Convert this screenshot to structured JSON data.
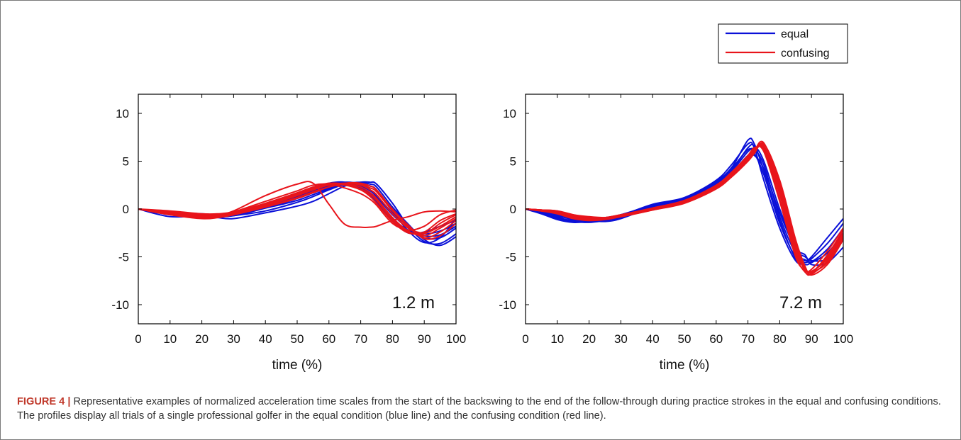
{
  "figure": {
    "caption_label": "FIGURE 4 |",
    "caption_text": " Representative examples of normalized acceleration time scales from the start of the backswing to the end of the follow-through during practice strokes in the equal and confusing conditions. The profiles display all trials of a single professional golfer in the equal condition (blue line) and the confusing condition (red line)."
  },
  "legend": {
    "items": [
      {
        "label": "equal",
        "color": "#0a10d8"
      },
      {
        "label": "confusing",
        "color": "#e8141b"
      }
    ]
  },
  "chart_data": [
    {
      "type": "line",
      "panel_label": "1.2 m",
      "xlabel": "time (%)",
      "ylabel": "",
      "xlim": [
        0,
        100
      ],
      "ylim": [
        -12,
        12
      ],
      "xticks": [
        0,
        10,
        20,
        30,
        40,
        50,
        60,
        70,
        80,
        90,
        100
      ],
      "yticks": [
        10,
        5,
        0,
        -5,
        -10
      ],
      "grid": false,
      "x": [
        0,
        10,
        20,
        25,
        30,
        40,
        50,
        55,
        60,
        65,
        70,
        73,
        75,
        80,
        85,
        90,
        95,
        100
      ],
      "series": [
        {
          "group": "equal",
          "color": "#0a10d8",
          "values": [
            0,
            -0.3,
            -0.5,
            -0.6,
            -0.5,
            0.3,
            1.4,
            1.9,
            2.4,
            2.6,
            2.3,
            1.6,
            0.9,
            -1.0,
            -2.2,
            -2.6,
            -2.3,
            -1.5
          ]
        },
        {
          "group": "equal",
          "color": "#0a10d8",
          "values": [
            0,
            -0.6,
            -0.9,
            -0.8,
            -0.7,
            0.1,
            1.1,
            1.7,
            2.2,
            2.5,
            2.4,
            1.9,
            1.3,
            -0.6,
            -2.0,
            -2.8,
            -2.7,
            -1.8
          ]
        },
        {
          "group": "equal",
          "color": "#0a10d8",
          "values": [
            0,
            -0.4,
            -0.6,
            -0.7,
            -0.6,
            0.2,
            1.3,
            1.9,
            2.5,
            2.8,
            2.6,
            2.0,
            1.4,
            -0.4,
            -1.8,
            -3.0,
            -3.0,
            -2.0
          ]
        },
        {
          "group": "equal",
          "color": "#0a10d8",
          "values": [
            0,
            -0.8,
            -0.7,
            -0.9,
            -1.0,
            -0.4,
            0.3,
            0.8,
            1.6,
            2.4,
            2.8,
            2.8,
            2.6,
            0.6,
            -1.8,
            -3.4,
            -3.6,
            -2.6
          ]
        },
        {
          "group": "equal",
          "color": "#0a10d8",
          "values": [
            0,
            -0.5,
            -0.8,
            -0.6,
            -0.4,
            0.4,
            1.6,
            2.2,
            2.7,
            2.8,
            2.2,
            1.4,
            0.7,
            -1.2,
            -2.5,
            -2.4,
            -1.8,
            -1.2
          ]
        },
        {
          "group": "equal",
          "color": "#0a10d8",
          "values": [
            0,
            -0.4,
            -0.7,
            -0.8,
            -0.7,
            -0.2,
            0.7,
            1.3,
            2.0,
            2.6,
            2.8,
            2.6,
            2.3,
            0.2,
            -1.6,
            -3.2,
            -3.8,
            -2.9
          ]
        },
        {
          "group": "equal",
          "color": "#0a10d8",
          "values": [
            0,
            -0.3,
            -0.6,
            -0.7,
            -0.5,
            0.1,
            0.9,
            1.5,
            2.1,
            2.6,
            2.7,
            2.4,
            2.0,
            -0.2,
            -2.3,
            -3.5,
            -3.0,
            -1.0
          ]
        },
        {
          "group": "confusing",
          "color": "#e8141b",
          "values": [
            0,
            -0.4,
            -0.8,
            -0.6,
            -0.2,
            1.4,
            2.6,
            2.7,
            0.5,
            -1.6,
            -1.9,
            -1.9,
            -1.8,
            -1.2,
            -0.8,
            -0.3,
            -0.2,
            -0.3
          ]
        },
        {
          "group": "confusing",
          "color": "#e8141b",
          "values": [
            0,
            -0.3,
            -0.7,
            -0.6,
            -0.3,
            0.8,
            1.9,
            2.5,
            2.6,
            2.2,
            1.6,
            1.0,
            0.4,
            -1.5,
            -2.2,
            -1.8,
            -0.6,
            -0.1
          ]
        },
        {
          "group": "confusing",
          "color": "#e8141b",
          "values": [
            0,
            -0.5,
            -0.9,
            -0.8,
            -0.6,
            0.3,
            1.4,
            2.0,
            2.5,
            2.7,
            2.5,
            2.0,
            1.5,
            -0.5,
            -2.0,
            -2.5,
            -1.8,
            -0.8
          ]
        },
        {
          "group": "confusing",
          "color": "#e8141b",
          "values": [
            0,
            -0.4,
            -0.8,
            -0.7,
            -0.5,
            0.4,
            1.5,
            2.1,
            2.5,
            2.6,
            2.3,
            1.7,
            1.1,
            -0.9,
            -2.3,
            -2.8,
            -2.0,
            -1.0
          ]
        },
        {
          "group": "confusing",
          "color": "#e8141b",
          "values": [
            0,
            -0.6,
            -1.0,
            -0.9,
            -0.6,
            0.2,
            1.2,
            1.8,
            2.3,
            2.6,
            2.6,
            2.2,
            1.8,
            -0.2,
            -1.9,
            -3.0,
            -2.4,
            -1.2
          ]
        },
        {
          "group": "confusing",
          "color": "#e8141b",
          "values": [
            0,
            -0.3,
            -0.6,
            -0.6,
            -0.4,
            0.5,
            1.6,
            2.2,
            2.6,
            2.5,
            2.0,
            1.3,
            0.6,
            -1.3,
            -2.5,
            -2.4,
            -1.2,
            -0.5
          ]
        },
        {
          "group": "confusing",
          "color": "#e8141b",
          "values": [
            0,
            -0.5,
            -0.8,
            -0.7,
            -0.5,
            0.2,
            1.1,
            1.7,
            2.3,
            2.7,
            2.7,
            2.4,
            2.0,
            0.0,
            -1.7,
            -3.1,
            -2.8,
            -1.5
          ]
        },
        {
          "group": "confusing",
          "color": "#e8141b",
          "values": [
            0,
            -0.2,
            -0.5,
            -0.5,
            -0.3,
            0.6,
            1.7,
            2.3,
            2.7,
            2.6,
            2.1,
            1.5,
            0.9,
            -1.1,
            -2.4,
            -2.6,
            -1.5,
            -0.6
          ]
        }
      ]
    },
    {
      "type": "line",
      "panel_label": "7.2 m",
      "xlabel": "time (%)",
      "ylabel": "",
      "xlim": [
        0,
        100
      ],
      "ylim": [
        -12,
        12
      ],
      "xticks": [
        0,
        10,
        20,
        30,
        40,
        50,
        60,
        70,
        80,
        90,
        100
      ],
      "yticks": [
        10,
        5,
        0,
        -5,
        -10
      ],
      "grid": false,
      "x": [
        0,
        5,
        10,
        15,
        20,
        25,
        30,
        40,
        50,
        60,
        65,
        70,
        72,
        75,
        80,
        85,
        88,
        90,
        95,
        100
      ],
      "series": [
        {
          "group": "equal",
          "color": "#0a10d8",
          "values": [
            0,
            -0.2,
            -0.8,
            -1.3,
            -1.2,
            -1.0,
            -0.6,
            0.2,
            1.0,
            2.8,
            4.3,
            6.2,
            5.8,
            3.6,
            -1.5,
            -5.0,
            -5.4,
            -5.0,
            -3.0,
            -1.0
          ]
        },
        {
          "group": "equal",
          "color": "#0a10d8",
          "values": [
            0,
            -0.5,
            -1.1,
            -1.4,
            -1.3,
            -1.1,
            -0.7,
            0.5,
            1.2,
            3.0,
            4.7,
            6.8,
            6.4,
            3.0,
            -2.0,
            -5.4,
            -5.6,
            -5.2,
            -3.6,
            -1.5
          ]
        },
        {
          "group": "equal",
          "color": "#0a10d8",
          "values": [
            0,
            -0.3,
            -0.9,
            -1.2,
            -1.2,
            -1.2,
            -0.8,
            0.3,
            0.9,
            2.6,
            4.0,
            6.0,
            6.2,
            4.6,
            -0.8,
            -4.6,
            -5.3,
            -5.5,
            -4.2,
            -2.0
          ]
        },
        {
          "group": "equal",
          "color": "#0a10d8",
          "values": [
            0,
            -0.2,
            -0.6,
            -1.0,
            -1.1,
            -0.9,
            -0.6,
            0.4,
            1.1,
            2.9,
            4.4,
            7.2,
            6.8,
            4.0,
            -1.2,
            -5.2,
            -5.8,
            -5.6,
            -4.6,
            -2.5
          ]
        },
        {
          "group": "equal",
          "color": "#0a10d8",
          "values": [
            0,
            -0.4,
            -1.0,
            -1.3,
            -1.4,
            -1.2,
            -0.9,
            0.1,
            0.8,
            2.5,
            3.8,
            5.6,
            5.6,
            4.2,
            -0.4,
            -4.2,
            -5.0,
            -5.4,
            -5.2,
            -3.2
          ]
        },
        {
          "group": "equal",
          "color": "#0a10d8",
          "values": [
            0,
            -0.3,
            -0.7,
            -1.1,
            -1.2,
            -1.3,
            -1.0,
            0.2,
            1.0,
            2.7,
            4.1,
            6.4,
            6.6,
            5.0,
            0.0,
            -4.0,
            -4.8,
            -5.8,
            -5.6,
            -4.0
          ]
        },
        {
          "group": "confusing",
          "color": "#e8141b",
          "values": [
            0,
            -0.1,
            -0.3,
            -0.8,
            -1.0,
            -0.9,
            -0.6,
            0.1,
            0.9,
            2.4,
            3.8,
            5.4,
            6.2,
            6.4,
            1.5,
            -4.5,
            -6.2,
            -6.6,
            -5.0,
            -2.5
          ]
        },
        {
          "group": "confusing",
          "color": "#e8141b",
          "values": [
            0,
            -0.2,
            -0.4,
            -0.9,
            -1.1,
            -1.0,
            -0.7,
            0.0,
            0.7,
            2.2,
            3.6,
            5.2,
            6.0,
            6.6,
            2.2,
            -4.0,
            -6.5,
            -6.8,
            -5.4,
            -2.8
          ]
        },
        {
          "group": "confusing",
          "color": "#e8141b",
          "values": [
            0,
            -0.1,
            -0.2,
            -0.6,
            -0.9,
            -1.0,
            -0.8,
            -0.1,
            0.6,
            2.1,
            3.4,
            5.0,
            5.8,
            6.8,
            3.0,
            -3.2,
            -6.0,
            -6.9,
            -5.8,
            -3.2
          ]
        },
        {
          "group": "confusing",
          "color": "#e8141b",
          "values": [
            0,
            -0.2,
            -0.5,
            -1.0,
            -1.2,
            -1.1,
            -0.8,
            0.0,
            0.8,
            2.3,
            3.7,
            5.5,
            6.3,
            6.2,
            1.0,
            -4.8,
            -6.6,
            -6.7,
            -4.8,
            -2.2
          ]
        },
        {
          "group": "confusing",
          "color": "#e8141b",
          "values": [
            0,
            -0.1,
            -0.3,
            -0.7,
            -1.0,
            -0.9,
            -0.7,
            0.1,
            0.9,
            2.5,
            3.9,
            5.6,
            6.4,
            6.0,
            0.8,
            -5.0,
            -6.4,
            -6.3,
            -4.4,
            -2.0
          ]
        },
        {
          "group": "confusing",
          "color": "#e8141b",
          "values": [
            0,
            -0.2,
            -0.4,
            -0.8,
            -1.1,
            -1.0,
            -0.7,
            0.0,
            0.8,
            2.3,
            3.6,
            5.3,
            6.1,
            6.9,
            2.6,
            -3.6,
            -6.2,
            -6.5,
            -5.2,
            -2.6
          ]
        },
        {
          "group": "confusing",
          "color": "#e8141b",
          "values": [
            0,
            -0.1,
            -0.2,
            -0.6,
            -0.8,
            -0.9,
            -0.8,
            -0.1,
            0.7,
            2.2,
            3.5,
            5.1,
            5.9,
            6.5,
            1.8,
            -4.2,
            -6.3,
            -6.6,
            -5.6,
            -3.0
          ]
        }
      ]
    }
  ]
}
